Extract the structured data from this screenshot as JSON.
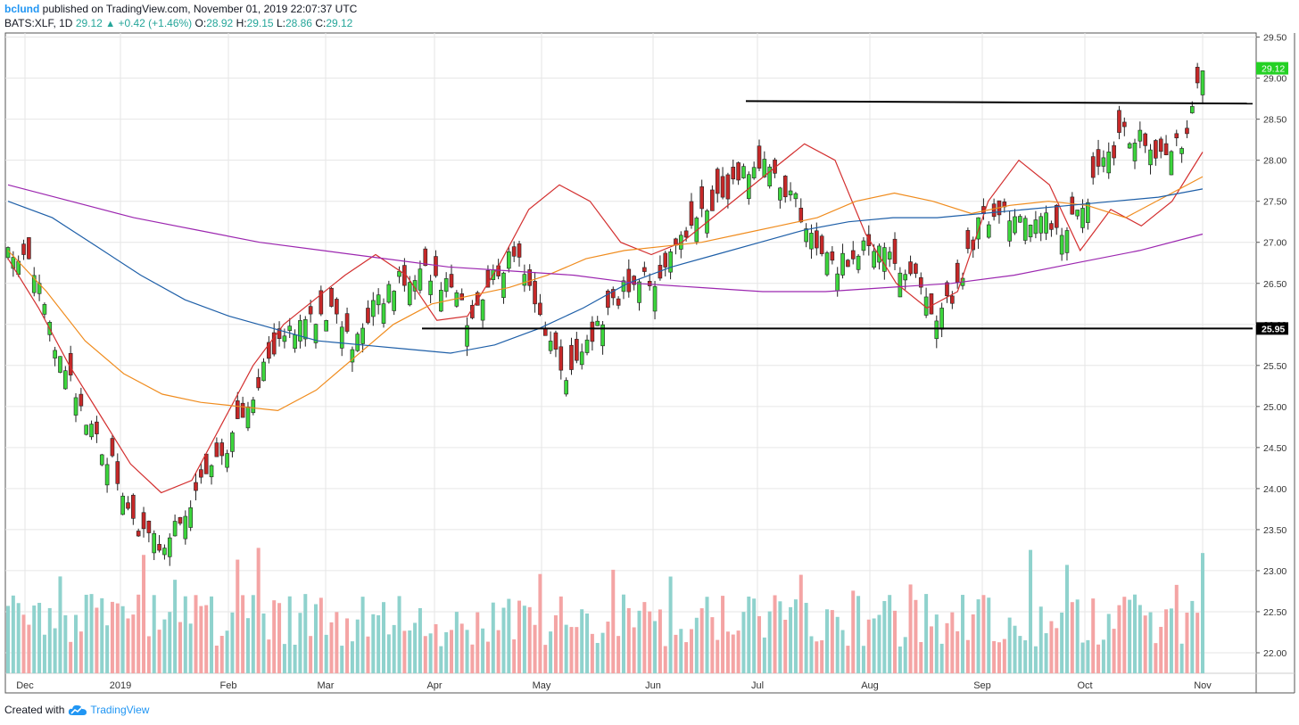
{
  "header": {
    "user": "bclund",
    "published_text": "published on TradingView.com, November 01, 2019 22:07:37 UTC",
    "symbol": "BATS:XLF, 1D",
    "last": "29.12",
    "change": "+0.42 (+1.46%)",
    "o_label": "O:",
    "o": "28.92",
    "h_label": "H:",
    "h": "29.15",
    "l_label": "L:",
    "l": "28.86",
    "c_label": "C:",
    "c": "29.12"
  },
  "footer": {
    "created_with": "Created with",
    "brand": "TradingView",
    "brand_icon": "tradingview-cloud-icon"
  },
  "colors": {
    "up": "#26a69a",
    "up_candle": "#3cd63c",
    "down_candle": "#c62828",
    "ma_fast": "#d32f2f",
    "ma_mid": "#f08c1e",
    "ma_slow": "#1e5fa8",
    "ma_long": "#9c27b0",
    "grid": "#e6e6e6",
    "last_price_bg": "#24d124"
  },
  "chart_data": {
    "type": "candlestick",
    "y_axis": {
      "min": 21.75,
      "max": 29.55,
      "ticks": [
        "29.50",
        "29.00",
        "28.50",
        "28.00",
        "27.50",
        "27.00",
        "26.50",
        "26.00",
        "25.50",
        "25.00",
        "24.50",
        "24.00",
        "23.50",
        "23.00",
        "22.50",
        "22.00"
      ],
      "position": "right"
    },
    "x_axis": {
      "labels": [
        "Dec",
        "2019",
        "Feb",
        "Mar",
        "Apr",
        "May",
        "Jun",
        "Jul",
        "Aug",
        "Sep",
        "Oct",
        "Nov"
      ]
    },
    "last_price_label": "29.12",
    "support_label": "25.95",
    "horizontal_lines": [
      {
        "from": "Jun 27",
        "to": "Nov 4",
        "start": 28.72,
        "end": 28.69
      },
      {
        "from": "Mar 27",
        "to": "Nov 4",
        "start": 25.95,
        "end": 25.95
      }
    ],
    "moving_averages": [
      {
        "color": "ma_fast",
        "values": [
          26.8,
          26.2,
          25.5,
          24.9,
          24.3,
          23.95,
          24.1,
          24.8,
          25.5,
          26.0,
          26.3,
          26.6,
          26.85,
          26.6,
          26.05,
          26.1,
          26.7,
          27.4,
          27.7,
          27.5,
          27.0,
          26.85,
          27.0,
          27.3,
          27.6,
          27.9,
          28.2,
          28.0,
          27.1,
          26.5,
          26.2,
          26.4,
          27.5,
          28.0,
          27.7,
          26.9,
          27.4,
          27.2,
          27.5,
          28.1
        ]
      },
      {
        "color": "ma_mid",
        "values": [
          26.9,
          26.4,
          25.8,
          25.4,
          25.15,
          25.05,
          25.0,
          24.95,
          25.2,
          25.6,
          26.0,
          26.25,
          26.35,
          26.45,
          26.6,
          26.8,
          26.9,
          26.95,
          27.0,
          27.1,
          27.2,
          27.3,
          27.5,
          27.6,
          27.5,
          27.35,
          27.45,
          27.5,
          27.45,
          27.3,
          27.55,
          27.8
        ]
      },
      {
        "color": "ma_slow",
        "values": [
          27.5,
          27.3,
          26.95,
          26.6,
          26.3,
          26.1,
          25.95,
          25.8,
          25.75,
          25.7,
          25.65,
          25.75,
          25.95,
          26.2,
          26.5,
          26.7,
          26.85,
          27.0,
          27.15,
          27.25,
          27.3,
          27.3,
          27.35,
          27.4,
          27.45,
          27.5,
          27.55,
          27.65
        ]
      },
      {
        "color": "ma_long",
        "values": [
          27.7,
          27.5,
          27.3,
          27.15,
          27.0,
          26.9,
          26.8,
          26.7,
          26.65,
          26.6,
          26.5,
          26.45,
          26.4,
          26.4,
          26.45,
          26.5,
          26.6,
          26.75,
          26.9,
          27.1
        ]
      }
    ]
  }
}
